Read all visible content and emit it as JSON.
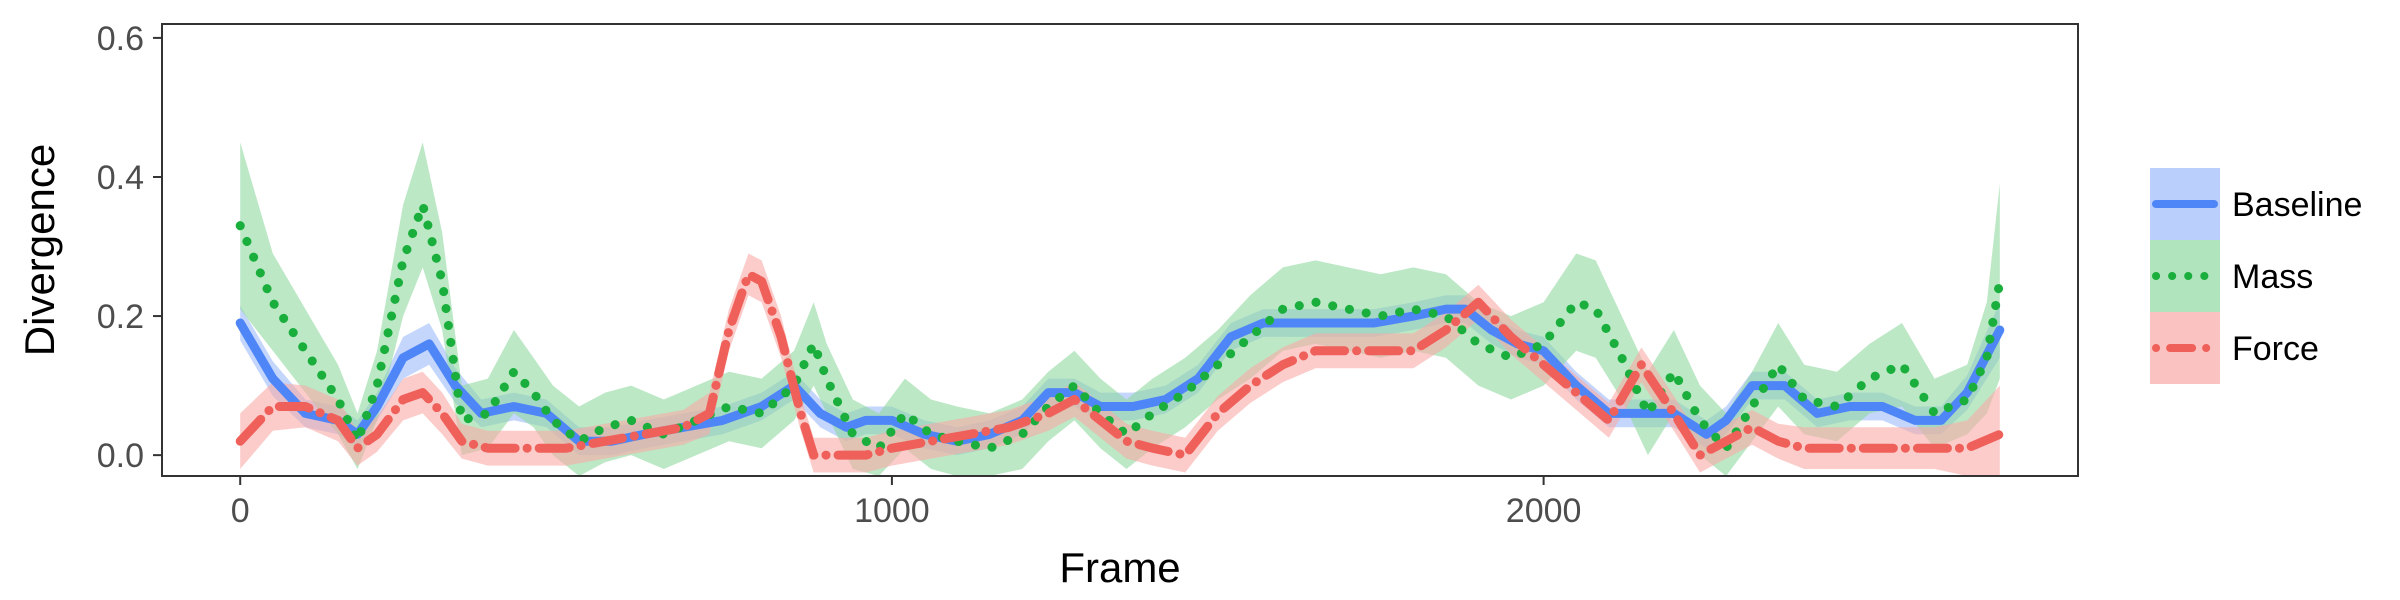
{
  "chart_data": {
    "type": "line",
    "xlabel": "Frame",
    "ylabel": "Divergence",
    "xlim": [
      -120,
      2820
    ],
    "ylim": [
      -0.03,
      0.62
    ],
    "x_ticks": [
      0,
      1000,
      2000
    ],
    "x_tick_labels": [
      "0",
      "1000",
      "2000"
    ],
    "y_ticks": [
      0.0,
      0.2,
      0.4,
      0.6
    ],
    "y_tick_labels": [
      "0.0",
      "0.2",
      "0.4",
      "0.6"
    ],
    "grid": false,
    "legend_position": "right",
    "series": [
      {
        "name": "Baseline",
        "color": "#4F86F7",
        "band_color": "#9DBBFA",
        "dash": "solid",
        "x": [
          0,
          50,
          100,
          150,
          180,
          210,
          250,
          290,
          330,
          370,
          420,
          470,
          520,
          570,
          620,
          680,
          740,
          800,
          850,
          890,
          930,
          960,
          1000,
          1050,
          1100,
          1150,
          1200,
          1240,
          1280,
          1320,
          1370,
          1420,
          1470,
          1520,
          1570,
          1620,
          1680,
          1740,
          1800,
          1850,
          1880,
          1920,
          1960,
          2000,
          2050,
          2100,
          2150,
          2200,
          2250,
          2280,
          2320,
          2370,
          2420,
          2470,
          2520,
          2570,
          2610,
          2650,
          2700
        ],
        "y": [
          0.19,
          0.11,
          0.06,
          0.05,
          0.03,
          0.07,
          0.14,
          0.16,
          0.1,
          0.06,
          0.07,
          0.06,
          0.02,
          0.02,
          0.03,
          0.04,
          0.05,
          0.07,
          0.1,
          0.06,
          0.04,
          0.05,
          0.05,
          0.03,
          0.02,
          0.03,
          0.05,
          0.09,
          0.09,
          0.07,
          0.07,
          0.08,
          0.11,
          0.17,
          0.19,
          0.19,
          0.19,
          0.19,
          0.2,
          0.21,
          0.21,
          0.18,
          0.16,
          0.15,
          0.1,
          0.06,
          0.06,
          0.06,
          0.03,
          0.05,
          0.1,
          0.1,
          0.06,
          0.07,
          0.07,
          0.05,
          0.05,
          0.09,
          0.18
        ],
        "band": [
          0.025,
          0.025,
          0.02,
          0.02,
          0.02,
          0.02,
          0.03,
          0.03,
          0.025,
          0.02,
          0.02,
          0.02,
          0.02,
          0.02,
          0.02,
          0.02,
          0.02,
          0.02,
          0.02,
          0.02,
          0.02,
          0.02,
          0.02,
          0.02,
          0.02,
          0.02,
          0.02,
          0.02,
          0.02,
          0.02,
          0.02,
          0.02,
          0.02,
          0.02,
          0.02,
          0.02,
          0.02,
          0.02,
          0.02,
          0.02,
          0.02,
          0.02,
          0.02,
          0.02,
          0.02,
          0.02,
          0.02,
          0.02,
          0.02,
          0.02,
          0.02,
          0.02,
          0.02,
          0.02,
          0.02,
          0.02,
          0.02,
          0.025,
          0.04
        ]
      },
      {
        "name": "Mass",
        "color": "#1AAE3C",
        "band_color": "#8FD9A0",
        "dash": "dotted",
        "x": [
          0,
          50,
          100,
          150,
          180,
          210,
          250,
          280,
          310,
          340,
          380,
          420,
          450,
          480,
          520,
          560,
          600,
          650,
          700,
          750,
          800,
          850,
          880,
          900,
          940,
          980,
          1020,
          1060,
          1100,
          1150,
          1200,
          1240,
          1280,
          1320,
          1360,
          1400,
          1450,
          1500,
          1550,
          1600,
          1650,
          1700,
          1750,
          1800,
          1850,
          1900,
          1950,
          2000,
          2050,
          2080,
          2120,
          2160,
          2200,
          2240,
          2280,
          2320,
          2360,
          2400,
          2450,
          2500,
          2550,
          2600,
          2650,
          2680,
          2700
        ],
        "y": [
          0.33,
          0.22,
          0.15,
          0.08,
          0.02,
          0.1,
          0.28,
          0.36,
          0.25,
          0.05,
          0.06,
          0.12,
          0.09,
          0.05,
          0.02,
          0.04,
          0.05,
          0.03,
          0.05,
          0.07,
          0.06,
          0.1,
          0.16,
          0.11,
          0.03,
          0.01,
          0.06,
          0.03,
          0.02,
          0.01,
          0.03,
          0.07,
          0.1,
          0.06,
          0.03,
          0.06,
          0.09,
          0.13,
          0.17,
          0.21,
          0.22,
          0.21,
          0.2,
          0.21,
          0.2,
          0.16,
          0.14,
          0.16,
          0.22,
          0.21,
          0.14,
          0.06,
          0.12,
          0.05,
          0.01,
          0.07,
          0.13,
          0.08,
          0.07,
          0.11,
          0.13,
          0.06,
          0.08,
          0.14,
          0.25
        ],
        "band": [
          0.12,
          0.07,
          0.06,
          0.05,
          0.04,
          0.05,
          0.08,
          0.09,
          0.07,
          0.05,
          0.05,
          0.06,
          0.05,
          0.05,
          0.05,
          0.05,
          0.05,
          0.05,
          0.05,
          0.05,
          0.05,
          0.05,
          0.06,
          0.05,
          0.05,
          0.05,
          0.05,
          0.05,
          0.05,
          0.05,
          0.05,
          0.05,
          0.05,
          0.05,
          0.05,
          0.05,
          0.05,
          0.05,
          0.06,
          0.06,
          0.06,
          0.06,
          0.06,
          0.06,
          0.06,
          0.06,
          0.06,
          0.06,
          0.07,
          0.07,
          0.06,
          0.06,
          0.06,
          0.05,
          0.05,
          0.05,
          0.06,
          0.05,
          0.05,
          0.05,
          0.06,
          0.05,
          0.05,
          0.08,
          0.14
        ]
      },
      {
        "name": "Force",
        "color": "#F0605A",
        "band_color": "#F8AAA6",
        "dash": "dashdot",
        "x": [
          0,
          50,
          100,
          150,
          180,
          210,
          250,
          280,
          310,
          340,
          380,
          420,
          460,
          500,
          560,
          620,
          680,
          720,
          750,
          780,
          800,
          830,
          860,
          880,
          920,
          960,
          1000,
          1060,
          1120,
          1180,
          1240,
          1280,
          1320,
          1360,
          1400,
          1450,
          1500,
          1550,
          1600,
          1650,
          1700,
          1750,
          1800,
          1850,
          1900,
          1950,
          2000,
          2050,
          2100,
          2150,
          2200,
          2240,
          2280,
          2320,
          2360,
          2400,
          2450,
          2500,
          2550,
          2600,
          2650,
          2700
        ],
        "y": [
          0.02,
          0.07,
          0.07,
          0.05,
          0.01,
          0.03,
          0.08,
          0.09,
          0.06,
          0.02,
          0.01,
          0.01,
          0.01,
          0.01,
          0.02,
          0.03,
          0.04,
          0.06,
          0.18,
          0.26,
          0.25,
          0.17,
          0.06,
          0.0,
          0.0,
          0.0,
          0.01,
          0.02,
          0.03,
          0.04,
          0.06,
          0.08,
          0.05,
          0.02,
          0.01,
          0.0,
          0.06,
          0.1,
          0.13,
          0.15,
          0.15,
          0.15,
          0.15,
          0.18,
          0.22,
          0.17,
          0.13,
          0.09,
          0.05,
          0.13,
          0.06,
          0.0,
          0.02,
          0.04,
          0.02,
          0.01,
          0.01,
          0.01,
          0.01,
          0.01,
          0.01,
          0.03
        ],
        "band": [
          0.04,
          0.035,
          0.03,
          0.03,
          0.025,
          0.025,
          0.03,
          0.03,
          0.03,
          0.025,
          0.025,
          0.025,
          0.025,
          0.025,
          0.025,
          0.025,
          0.025,
          0.03,
          0.03,
          0.03,
          0.03,
          0.03,
          0.025,
          0.025,
          0.025,
          0.025,
          0.025,
          0.025,
          0.025,
          0.025,
          0.025,
          0.025,
          0.025,
          0.025,
          0.025,
          0.025,
          0.025,
          0.025,
          0.025,
          0.025,
          0.025,
          0.025,
          0.025,
          0.025,
          0.025,
          0.025,
          0.025,
          0.025,
          0.025,
          0.025,
          0.025,
          0.025,
          0.025,
          0.025,
          0.025,
          0.03,
          0.03,
          0.03,
          0.03,
          0.03,
          0.04,
          0.07
        ]
      }
    ]
  }
}
